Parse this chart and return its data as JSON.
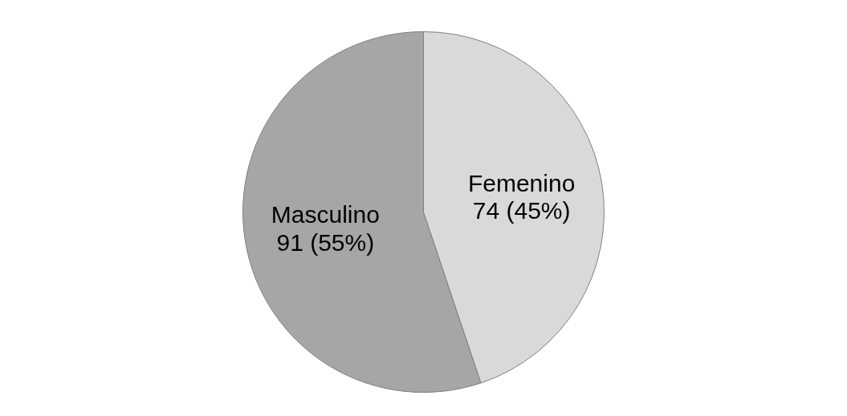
{
  "chart_data": {
    "type": "pie",
    "categories": [
      "Masculino",
      "Femenino"
    ],
    "values": [
      91,
      74
    ],
    "value_labels": [
      "91 (55%)",
      "74 (45%)"
    ],
    "colors": [
      "#a6a6a6",
      "#d9d9d9"
    ]
  }
}
